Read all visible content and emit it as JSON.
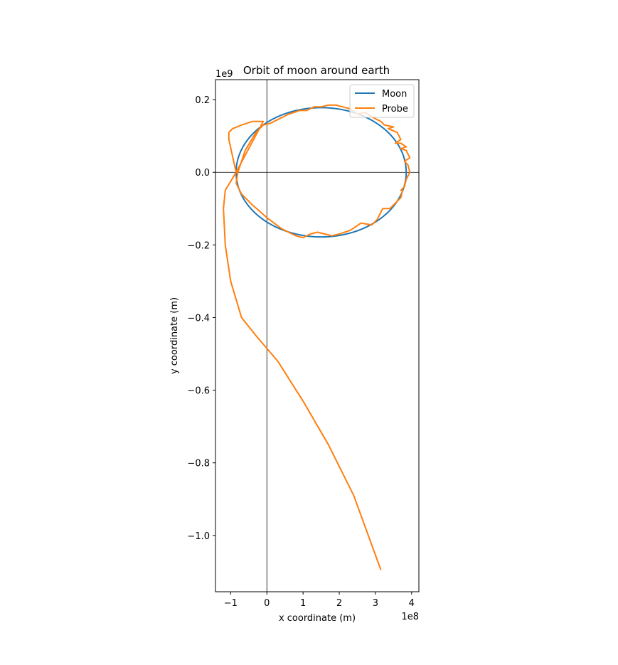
{
  "chart_data": {
    "type": "line",
    "title": "Orbit of moon around earth",
    "xlabel": "x coordinate (m)",
    "ylabel": "y coordinate (m)",
    "x_offset_label": "1e8",
    "y_offset_label": "1e9",
    "xlim": [
      -1.42,
      4.2
    ],
    "ylim": [
      -1.155,
      0.255
    ],
    "x_unit_scale": 100000000,
    "y_unit_scale": 1000000000,
    "x_ticks": [
      -1,
      0,
      1,
      2,
      3,
      4
    ],
    "x_tick_labels": [
      "−1",
      "0",
      "1",
      "2",
      "3",
      "4"
    ],
    "y_ticks": [
      0.2,
      0.0,
      -0.2,
      -0.4,
      -0.6,
      -0.8,
      -1.0
    ],
    "y_tick_labels": [
      "0.2",
      "0.0",
      "−0.2",
      "−0.4",
      "−0.6",
      "−0.8",
      "−1.0"
    ],
    "reference_lines": {
      "x": 0,
      "y": 0
    },
    "grid": false,
    "legend_position": "top-right",
    "series": [
      {
        "name": "Moon",
        "color": "#1f77b4",
        "style": "ellipse",
        "center": [
          1.5,
          0.0
        ],
        "semi_axes": [
          2.35,
          0.178
        ]
      },
      {
        "name": "Probe",
        "color": "#ff7f0e",
        "points": [
          [
            -0.85,
            -0.03
          ],
          [
            -0.7,
            -0.06
          ],
          [
            -0.4,
            -0.09
          ],
          [
            0.0,
            -0.125
          ],
          [
            0.4,
            -0.155
          ],
          [
            0.8,
            -0.175
          ],
          [
            1.0,
            -0.18
          ],
          [
            1.2,
            -0.17
          ],
          [
            1.4,
            -0.165
          ],
          [
            1.6,
            -0.17
          ],
          [
            1.8,
            -0.175
          ],
          [
            2.0,
            -0.17
          ],
          [
            2.3,
            -0.16
          ],
          [
            2.6,
            -0.14
          ],
          [
            2.9,
            -0.145
          ],
          [
            3.05,
            -0.13
          ],
          [
            3.2,
            -0.1
          ],
          [
            3.4,
            -0.1
          ],
          [
            3.6,
            -0.08
          ],
          [
            3.7,
            -0.07
          ],
          [
            3.75,
            -0.05
          ],
          [
            3.7,
            -0.05
          ],
          [
            3.8,
            -0.04
          ],
          [
            3.85,
            -0.02
          ],
          [
            3.95,
            0.0
          ],
          [
            3.9,
            0.02
          ],
          [
            3.8,
            0.03
          ],
          [
            3.95,
            0.04
          ],
          [
            3.85,
            0.06
          ],
          [
            3.7,
            0.065
          ],
          [
            3.85,
            0.07
          ],
          [
            3.7,
            0.08
          ],
          [
            3.55,
            0.08
          ],
          [
            3.7,
            0.09
          ],
          [
            3.6,
            0.11
          ],
          [
            3.35,
            0.12
          ],
          [
            3.5,
            0.125
          ],
          [
            3.25,
            0.13
          ],
          [
            3.15,
            0.14
          ],
          [
            2.95,
            0.15
          ],
          [
            2.7,
            0.165
          ],
          [
            2.5,
            0.16
          ],
          [
            2.3,
            0.175
          ],
          [
            2.1,
            0.18
          ],
          [
            1.9,
            0.185
          ],
          [
            1.7,
            0.185
          ],
          [
            1.5,
            0.18
          ],
          [
            1.3,
            0.18
          ],
          [
            1.1,
            0.17
          ],
          [
            0.9,
            0.17
          ],
          [
            0.6,
            0.16
          ],
          [
            0.3,
            0.145
          ],
          [
            0.1,
            0.135
          ],
          [
            -0.1,
            0.13
          ],
          [
            -0.3,
            0.11
          ],
          [
            -0.6,
            0.06
          ],
          [
            -0.8,
            0.0
          ],
          [
            -0.85,
            -0.03
          ]
        ],
        "escape_points": [
          [
            -0.85,
            0.0
          ],
          [
            -1.05,
            0.09
          ],
          [
            -1.05,
            0.11
          ],
          [
            -0.95,
            0.12
          ],
          [
            -0.7,
            0.13
          ],
          [
            -0.4,
            0.14
          ],
          [
            -0.1,
            0.14
          ],
          [
            -0.85,
            0.0
          ],
          [
            -1.15,
            -0.05
          ],
          [
            -1.2,
            -0.1
          ],
          [
            -1.15,
            -0.2
          ],
          [
            -1.0,
            -0.3
          ],
          [
            -0.7,
            -0.4
          ],
          [
            -0.3,
            -0.45
          ],
          [
            0.3,
            -0.52
          ],
          [
            1.0,
            -0.63
          ],
          [
            1.7,
            -0.75
          ],
          [
            2.4,
            -0.89
          ],
          [
            3.15,
            -1.095
          ]
        ]
      }
    ]
  }
}
